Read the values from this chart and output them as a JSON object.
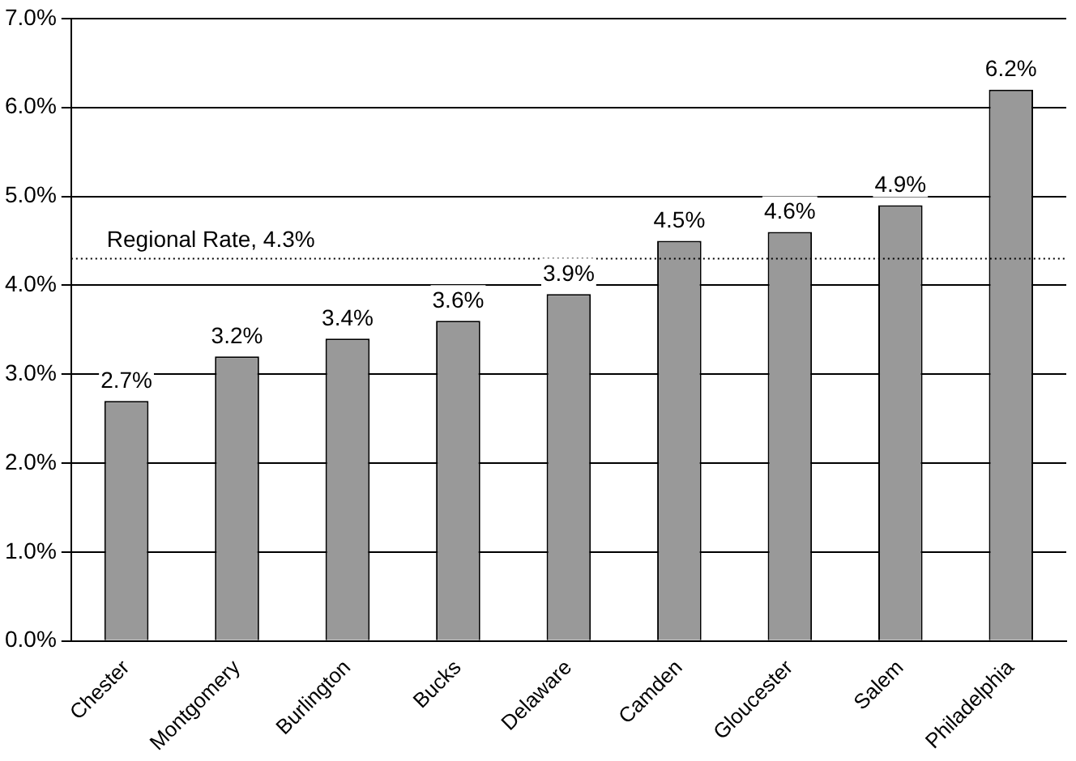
{
  "chart_data": {
    "type": "bar",
    "categories": [
      "Chester",
      "Montgomery",
      "Burlington",
      "Bucks",
      "Delaware",
      "Camden",
      "Gloucester",
      "Salem",
      "Philadelphia"
    ],
    "values": [
      2.7,
      3.2,
      3.4,
      3.6,
      3.9,
      4.5,
      4.6,
      4.9,
      6.2
    ],
    "value_labels": [
      "2.7%",
      "3.2%",
      "3.4%",
      "3.6%",
      "3.9%",
      "4.5%",
      "4.6%",
      "4.9%",
      "6.2%"
    ],
    "color": "#999999",
    "ylim": [
      0,
      7
    ],
    "yticks": [
      {
        "value": 0,
        "label": "0.0%"
      },
      {
        "value": 1,
        "label": "1.0%"
      },
      {
        "value": 2,
        "label": "2.0%"
      },
      {
        "value": 3,
        "label": "3.0%"
      },
      {
        "value": 4,
        "label": "4.0%"
      },
      {
        "value": 5,
        "label": "5.0%"
      },
      {
        "value": 6,
        "label": "6.0%"
      },
      {
        "value": 7,
        "label": "7.0%"
      }
    ],
    "grid": "y",
    "ref_lines": [
      {
        "axis": "y",
        "value": 4.3,
        "label": "Regional Rate, 4.3%",
        "line_style": "dotted",
        "color": "#000000"
      }
    ]
  }
}
